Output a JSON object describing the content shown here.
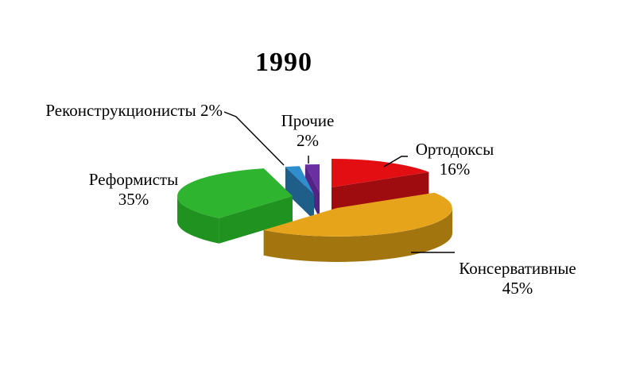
{
  "chart_data": {
    "type": "pie",
    "style": "3d-exploded",
    "title": "1990",
    "start_angle_deg": 0,
    "direction": "clockwise",
    "background": "#ffffff",
    "slices": [
      {
        "label": "Ортодоксы",
        "value": 16,
        "pct_text": "16%",
        "color": "#E30E11",
        "side_color": "#9E0C10"
      },
      {
        "label": "Консервативные",
        "value": 45,
        "pct_text": "45%",
        "color": "#E6A41A",
        "side_color": "#A3750F"
      },
      {
        "label": "Реформисты",
        "value": 35,
        "pct_text": "35%",
        "color": "#2EB42E",
        "side_color": "#1F9220"
      },
      {
        "label": "Реконструкционисты",
        "value": 2,
        "pct_text": "2%",
        "color": "#2F8FCC",
        "side_color": "#1E5E88"
      },
      {
        "label": "Прочие",
        "value": 2,
        "pct_text": "2%",
        "color": "#6C2FA2",
        "side_color": "#542386"
      }
    ]
  }
}
